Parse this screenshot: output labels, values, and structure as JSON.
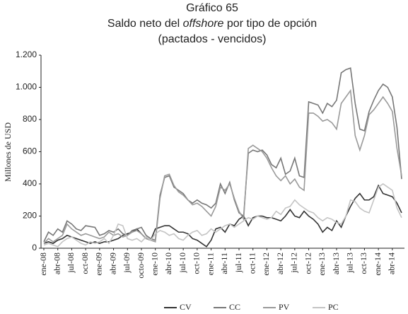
{
  "chart_data": {
    "type": "line",
    "title": "Gráfico 65",
    "subtitle_parts": [
      "Saldo neto del ",
      "offshore",
      " por tipo de opción"
    ],
    "subtitle2": "(pactados - vencidos)",
    "y_label": "Millones de USD",
    "categories": [
      "ene-08",
      null,
      null,
      "abr-08",
      null,
      null,
      "jul-08",
      null,
      null,
      "oct-08",
      null,
      null,
      "ene-09",
      null,
      null,
      "abr-09",
      null,
      null,
      "jul-09",
      null,
      null,
      "octo-09",
      null,
      null,
      "ene-10",
      null,
      null,
      "abr-10",
      null,
      null,
      "jul-10",
      null,
      null,
      "oct-10",
      null,
      null,
      "ene-11",
      null,
      null,
      "abr-11",
      null,
      null,
      "jul-11",
      null,
      null,
      "oct-11",
      null,
      null,
      "ene-12",
      null,
      null,
      "abr-12",
      null,
      null,
      "jul-12",
      null,
      null,
      "oct-12",
      null,
      null,
      "ene-13",
      null,
      null,
      "abr-13",
      null,
      null,
      "jul-13",
      null,
      null,
      "oct-13",
      null,
      null,
      "ene-14",
      null,
      null,
      "abr-14",
      null,
      null
    ],
    "series": [
      {
        "name": "CV",
        "color": "#333333",
        "values": [
          30,
          40,
          30,
          50,
          60,
          80,
          70,
          60,
          50,
          40,
          30,
          40,
          30,
          40,
          40,
          50,
          60,
          80,
          90,
          100,
          120,
          90,
          60,
          50,
          120,
          130,
          140,
          140,
          120,
          100,
          100,
          90,
          60,
          50,
          30,
          10,
          50,
          120,
          130,
          100,
          150,
          140,
          180,
          200,
          140,
          190,
          200,
          200,
          190,
          190,
          180,
          170,
          200,
          240,
          200,
          190,
          230,
          200,
          180,
          150,
          100,
          130,
          110,
          170,
          130,
          200,
          260,
          310,
          340,
          300,
          300,
          320,
          390,
          340,
          330,
          320,
          280,
          220
        ]
      },
      {
        "name": "CC",
        "color": "#777777",
        "values": [
          40,
          100,
          80,
          120,
          100,
          170,
          150,
          120,
          110,
          140,
          135,
          130,
          80,
          90,
          110,
          100,
          120,
          90,
          80,
          110,
          120,
          130,
          80,
          60,
          50,
          330,
          440,
          450,
          380,
          360,
          340,
          300,
          280,
          300,
          280,
          270,
          250,
          280,
          400,
          340,
          410,
          300,
          220,
          200,
          590,
          610,
          600,
          610,
          580,
          520,
          500,
          560,
          460,
          480,
          560,
          450,
          440,
          910,
          900,
          890,
          840,
          900,
          880,
          920,
          1090,
          1110,
          1120,
          900,
          740,
          730,
          850,
          920,
          980,
          1020,
          1000,
          940,
          750,
          430
        ]
      },
      {
        "name": "PV",
        "color": "#9a9a9a",
        "values": [
          30,
          60,
          40,
          60,
          80,
          150,
          120,
          100,
          80,
          90,
          80,
          70,
          60,
          70,
          100,
          80,
          90,
          70,
          80,
          100,
          110,
          90,
          60,
          50,
          40,
          310,
          450,
          460,
          390,
          350,
          330,
          300,
          270,
          280,
          260,
          230,
          200,
          260,
          380,
          360,
          400,
          310,
          230,
          180,
          620,
          640,
          620,
          600,
          560,
          500,
          450,
          420,
          450,
          400,
          430,
          380,
          360,
          840,
          840,
          820,
          790,
          800,
          780,
          740,
          900,
          940,
          980,
          700,
          610,
          700,
          830,
          860,
          900,
          940,
          900,
          850,
          620,
          450
        ]
      },
      {
        "name": "PC",
        "color": "#c4c4c4",
        "values": [
          20,
          30,
          20,
          10,
          40,
          60,
          70,
          50,
          30,
          20,
          40,
          30,
          40,
          60,
          30,
          80,
          150,
          140,
          60,
          50,
          60,
          40,
          70,
          50,
          90,
          110,
          100,
          80,
          90,
          60,
          50,
          80,
          100,
          110,
          80,
          90,
          120,
          100,
          120,
          140,
          150,
          130,
          150,
          170,
          190,
          180,
          200,
          190,
          180,
          190,
          230,
          210,
          250,
          260,
          300,
          270,
          250,
          230,
          220,
          190,
          170,
          190,
          180,
          160,
          150,
          200,
          300,
          290,
          250,
          230,
          220,
          300,
          380,
          400,
          380,
          360,
          250,
          190
        ]
      }
    ],
    "ylim": [
      0,
      1200
    ],
    "yticks": [
      0,
      200,
      400,
      600,
      800,
      {
        "value": 1000,
        "label": "1.000"
      },
      {
        "value": 1200,
        "label": "1.200"
      }
    ]
  }
}
